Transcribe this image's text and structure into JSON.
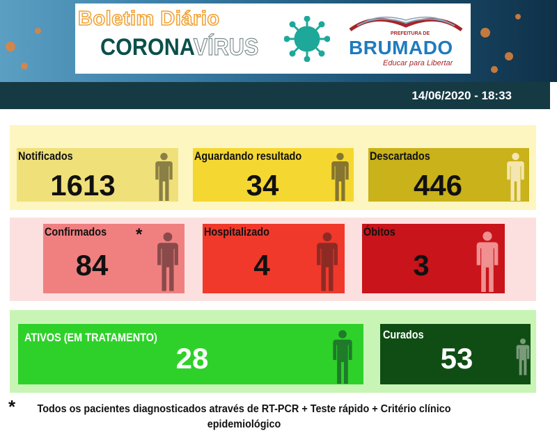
{
  "header": {
    "title_line1": "Boletim Diário",
    "title_corona": "CORONA",
    "title_virus": "VÍRUS",
    "logo": {
      "prefeitura": "PREFEITURA DE",
      "city": "BRUMADO",
      "slogan": "Educar para Libertar"
    },
    "datetime": "14/06/2020  - 18:33"
  },
  "groups": {
    "yellow": {
      "notificados": {
        "label": "Notificados",
        "value": "1613"
      },
      "aguardando": {
        "label": "Aguardando resultado",
        "value": "34"
      },
      "descartados": {
        "label": "Descartados",
        "value": "446"
      }
    },
    "red": {
      "confirmados": {
        "label": "Confirmados",
        "marker": "*",
        "value": "84"
      },
      "hospitalizado": {
        "label": "Hospitalizado",
        "value": "4"
      },
      "obitos": {
        "label": "Óbitos",
        "value": "3"
      }
    },
    "green": {
      "ativos": {
        "label": "ATIVOS (EM TRATAMENTO)",
        "value": "28"
      },
      "curados": {
        "label": "Curados",
        "value": "53"
      }
    }
  },
  "footnote": {
    "marker": "*",
    "text": "Todos os pacientes diagnosticados  através de RT-PCR + Teste rápido + Critério clínico epidemiológico"
  },
  "colors": {
    "notificados": "#f0e07a",
    "aguardando": "#f5d731",
    "descartados": "#c9b21a",
    "confirmados": "#f08080",
    "hospitalizado": "#f0392b",
    "obitos": "#c8141a",
    "ativos": "#2ed12a",
    "curados": "#0f4d14"
  },
  "icons": [
    "coronavirus-icon",
    "person-icon"
  ]
}
